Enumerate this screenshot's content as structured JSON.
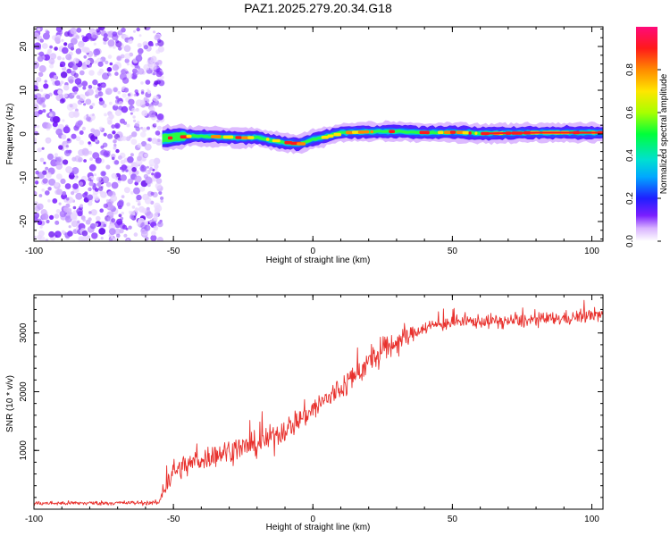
{
  "figure_title": "PAZ1.2025.279.20.34.G18",
  "colors": {
    "snr_line": "#e8312d",
    "ridge_core": "#ff1a1a",
    "axis": "#000000"
  },
  "chart_data": [
    {
      "type": "heatmap",
      "name": "spectrogram",
      "xlabel": "Height of straight line (km)",
      "ylabel": "Frequency (Hz)",
      "xlim": [
        -100,
        104
      ],
      "ylim": [
        -24.5,
        24.5
      ],
      "xticks": [
        -100,
        -50,
        0,
        50,
        100
      ],
      "yticks": [
        -20,
        -10,
        0,
        10,
        20
      ],
      "noise_region_km": [
        -100,
        -54
      ],
      "signal_start_km": -54,
      "ridge_frequency": {
        "x": [
          -54,
          -45,
          -35,
          -25,
          -20,
          -15,
          -10,
          -5,
          0,
          5,
          10,
          20,
          30,
          40,
          50,
          60,
          70,
          80,
          90,
          100,
          104
        ],
        "y": [
          -1.0,
          -0.5,
          -0.6,
          -0.9,
          -0.7,
          -1.5,
          -2.0,
          -2.3,
          -1.2,
          -0.5,
          0.3,
          0.5,
          0.6,
          0.3,
          0.4,
          0.1,
          0.2,
          0.3,
          0.3,
          0.3,
          0.3
        ]
      },
      "colorbar": {
        "label": "Normalized spectral amplitude",
        "range": [
          0,
          1
        ],
        "ticks": [
          0.0,
          0.2,
          0.4,
          0.6,
          0.8
        ],
        "tick_labels": [
          "0.0",
          "0.2",
          "0.4",
          "0.6",
          "0.8"
        ]
      }
    },
    {
      "type": "line",
      "name": "snr",
      "xlabel": "Height of straight line (km)",
      "ylabel": "SNR (10 * v/v)",
      "xlim": [
        -100,
        104
      ],
      "ylim": [
        0,
        3650
      ],
      "xticks": [
        -100,
        -50,
        0,
        50,
        100
      ],
      "yticks": [
        1000,
        2000,
        3000
      ],
      "trend": {
        "x": [
          -100,
          -55,
          -54,
          -50,
          -40,
          -30,
          -20,
          -10,
          0,
          10,
          20,
          30,
          40,
          50,
          60,
          70,
          80,
          90,
          100,
          104
        ],
        "y": [
          100,
          110,
          300,
          650,
          850,
          1000,
          1100,
          1350,
          1700,
          2050,
          2500,
          2850,
          3100,
          3180,
          3200,
          3200,
          3220,
          3250,
          3300,
          3320
        ]
      }
    }
  ]
}
